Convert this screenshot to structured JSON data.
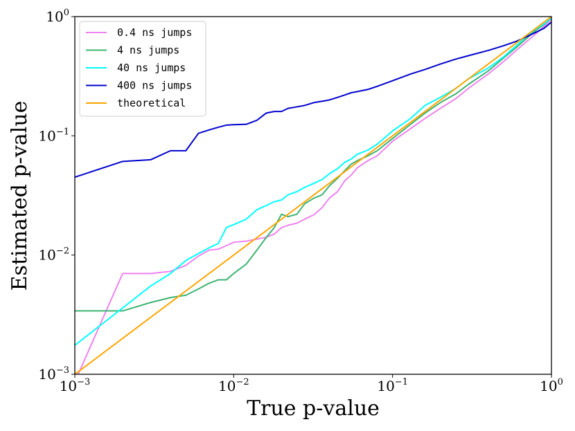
{
  "chart_data": {
    "type": "line",
    "xscale": "log",
    "yscale": "log",
    "xlim": [
      0.001,
      1
    ],
    "ylim": [
      0.001,
      1
    ],
    "xlabel": "True p-value",
    "ylabel": "Estimated p-value",
    "legend_position": "top-left",
    "grid": false,
    "x_ticks": [
      {
        "base": "10",
        "exp": "−3",
        "value": 0.001
      },
      {
        "base": "10",
        "exp": "−2",
        "value": 0.01
      },
      {
        "base": "10",
        "exp": "−1",
        "value": 0.1
      },
      {
        "base": "10",
        "exp": "0",
        "value": 1
      }
    ],
    "y_ticks": [
      {
        "base": "10",
        "exp": "−3",
        "value": 0.001
      },
      {
        "base": "10",
        "exp": "−2",
        "value": 0.01
      },
      {
        "base": "10",
        "exp": "−1",
        "value": 0.1
      },
      {
        "base": "10",
        "exp": "0",
        "value": 1
      }
    ],
    "series": [
      {
        "name": "0.4 ns jumps",
        "color": "#ee82ee",
        "points": [
          [
            0.00105,
            0.001
          ],
          [
            0.002,
            0.007
          ],
          [
            0.003,
            0.007
          ],
          [
            0.004,
            0.0073
          ],
          [
            0.005,
            0.0082
          ],
          [
            0.006,
            0.0098
          ],
          [
            0.007,
            0.011
          ],
          [
            0.008,
            0.0112
          ],
          [
            0.009,
            0.012
          ],
          [
            0.01,
            0.0128
          ],
          [
            0.012,
            0.0131
          ],
          [
            0.014,
            0.0136
          ],
          [
            0.016,
            0.0141
          ],
          [
            0.018,
            0.015
          ],
          [
            0.02,
            0.017
          ],
          [
            0.022,
            0.0178
          ],
          [
            0.025,
            0.0185
          ],
          [
            0.028,
            0.02
          ],
          [
            0.032,
            0.0218
          ],
          [
            0.036,
            0.025
          ],
          [
            0.04,
            0.03
          ],
          [
            0.045,
            0.034
          ],
          [
            0.05,
            0.042
          ],
          [
            0.055,
            0.047
          ],
          [
            0.06,
            0.054
          ],
          [
            0.07,
            0.062
          ],
          [
            0.08,
            0.068
          ],
          [
            0.1,
            0.09
          ],
          [
            0.13,
            0.115
          ],
          [
            0.16,
            0.14
          ],
          [
            0.2,
            0.17
          ],
          [
            0.25,
            0.205
          ],
          [
            0.3,
            0.25
          ],
          [
            0.4,
            0.33
          ],
          [
            0.5,
            0.42
          ],
          [
            0.6,
            0.52
          ],
          [
            0.7,
            0.62
          ],
          [
            0.8,
            0.72
          ],
          [
            0.9,
            0.83
          ],
          [
            1.0,
            0.95
          ]
        ]
      },
      {
        "name": "4 ns jumps",
        "color": "#3cb371",
        "points": [
          [
            0.001,
            0.0034
          ],
          [
            0.002,
            0.0034
          ],
          [
            0.003,
            0.004
          ],
          [
            0.004,
            0.0044
          ],
          [
            0.005,
            0.0046
          ],
          [
            0.006,
            0.0052
          ],
          [
            0.007,
            0.0058
          ],
          [
            0.008,
            0.0062
          ],
          [
            0.009,
            0.0062
          ],
          [
            0.01,
            0.007
          ],
          [
            0.012,
            0.0084
          ],
          [
            0.014,
            0.011
          ],
          [
            0.016,
            0.014
          ],
          [
            0.018,
            0.017
          ],
          [
            0.02,
            0.022
          ],
          [
            0.022,
            0.021
          ],
          [
            0.025,
            0.022
          ],
          [
            0.028,
            0.027
          ],
          [
            0.032,
            0.03
          ],
          [
            0.036,
            0.032
          ],
          [
            0.04,
            0.038
          ],
          [
            0.045,
            0.044
          ],
          [
            0.05,
            0.051
          ],
          [
            0.055,
            0.058
          ],
          [
            0.06,
            0.062
          ],
          [
            0.07,
            0.068
          ],
          [
            0.08,
            0.075
          ],
          [
            0.1,
            0.095
          ],
          [
            0.13,
            0.125
          ],
          [
            0.16,
            0.155
          ],
          [
            0.2,
            0.19
          ],
          [
            0.25,
            0.225
          ],
          [
            0.3,
            0.27
          ],
          [
            0.4,
            0.35
          ],
          [
            0.5,
            0.45
          ],
          [
            0.6,
            0.55
          ],
          [
            0.7,
            0.66
          ],
          [
            0.8,
            0.77
          ],
          [
            0.9,
            0.86
          ],
          [
            1.0,
            0.98
          ]
        ]
      },
      {
        "name": "40 ns jumps",
        "color": "#00ffff",
        "points": [
          [
            0.001,
            0.00175
          ],
          [
            0.002,
            0.0036
          ],
          [
            0.003,
            0.0055
          ],
          [
            0.004,
            0.007
          ],
          [
            0.005,
            0.009
          ],
          [
            0.006,
            0.0103
          ],
          [
            0.007,
            0.0115
          ],
          [
            0.008,
            0.0125
          ],
          [
            0.009,
            0.017
          ],
          [
            0.01,
            0.018
          ],
          [
            0.012,
            0.02
          ],
          [
            0.014,
            0.024
          ],
          [
            0.016,
            0.026
          ],
          [
            0.018,
            0.028
          ],
          [
            0.02,
            0.029
          ],
          [
            0.022,
            0.032
          ],
          [
            0.025,
            0.034
          ],
          [
            0.028,
            0.037
          ],
          [
            0.032,
            0.04
          ],
          [
            0.036,
            0.043
          ],
          [
            0.04,
            0.048
          ],
          [
            0.045,
            0.053
          ],
          [
            0.05,
            0.06
          ],
          [
            0.055,
            0.064
          ],
          [
            0.06,
            0.07
          ],
          [
            0.07,
            0.076
          ],
          [
            0.08,
            0.085
          ],
          [
            0.1,
            0.11
          ],
          [
            0.13,
            0.14
          ],
          [
            0.16,
            0.18
          ],
          [
            0.2,
            0.21
          ],
          [
            0.25,
            0.25
          ],
          [
            0.3,
            0.3
          ],
          [
            0.4,
            0.37
          ],
          [
            0.5,
            0.46
          ],
          [
            0.6,
            0.57
          ],
          [
            0.7,
            0.69
          ],
          [
            0.8,
            0.79
          ],
          [
            0.9,
            0.87
          ],
          [
            1.0,
            0.97
          ]
        ]
      },
      {
        "name": "400 ns jumps",
        "color": "#0000cd",
        "points": [
          [
            0.001,
            0.045
          ],
          [
            0.002,
            0.061
          ],
          [
            0.003,
            0.063
          ],
          [
            0.004,
            0.075
          ],
          [
            0.005,
            0.075
          ],
          [
            0.006,
            0.105
          ],
          [
            0.007,
            0.112
          ],
          [
            0.008,
            0.118
          ],
          [
            0.009,
            0.123
          ],
          [
            0.01,
            0.124
          ],
          [
            0.012,
            0.125
          ],
          [
            0.014,
            0.135
          ],
          [
            0.016,
            0.155
          ],
          [
            0.018,
            0.16
          ],
          [
            0.02,
            0.16
          ],
          [
            0.022,
            0.17
          ],
          [
            0.025,
            0.175
          ],
          [
            0.028,
            0.18
          ],
          [
            0.032,
            0.19
          ],
          [
            0.036,
            0.195
          ],
          [
            0.04,
            0.2
          ],
          [
            0.045,
            0.21
          ],
          [
            0.05,
            0.22
          ],
          [
            0.055,
            0.23
          ],
          [
            0.06,
            0.235
          ],
          [
            0.07,
            0.245
          ],
          [
            0.08,
            0.26
          ],
          [
            0.1,
            0.29
          ],
          [
            0.13,
            0.33
          ],
          [
            0.16,
            0.36
          ],
          [
            0.2,
            0.4
          ],
          [
            0.25,
            0.44
          ],
          [
            0.3,
            0.47
          ],
          [
            0.4,
            0.52
          ],
          [
            0.5,
            0.57
          ],
          [
            0.6,
            0.62
          ],
          [
            0.7,
            0.68
          ],
          [
            0.8,
            0.74
          ],
          [
            0.9,
            0.8
          ],
          [
            1.0,
            0.9
          ]
        ]
      },
      {
        "name": "theoretical",
        "color": "#ffa500",
        "points": [
          [
            0.001,
            0.001
          ],
          [
            1.0,
            1.0
          ]
        ]
      }
    ]
  }
}
